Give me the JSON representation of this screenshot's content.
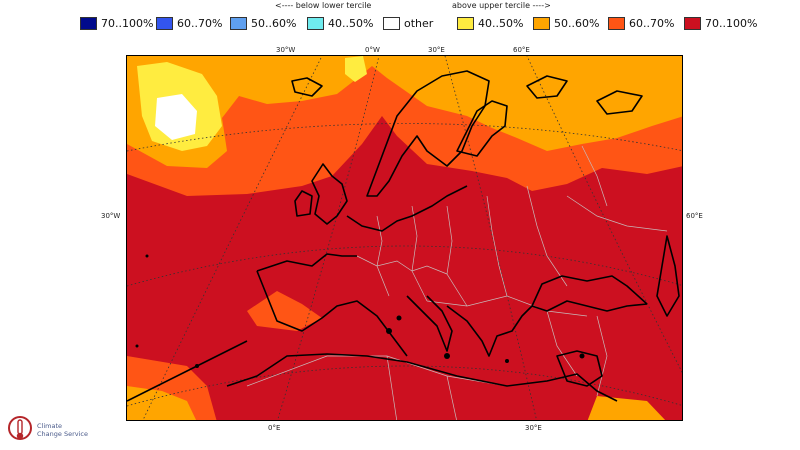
{
  "legend": {
    "below_caption": "<---- below lower tercile",
    "above_caption": "above upper tercile ---->",
    "items": [
      {
        "label": "70..100%",
        "color": "#000a8c"
      },
      {
        "label": "60..70%",
        "color": "#3355ee"
      },
      {
        "label": "50..60%",
        "color": "#5fa0f0"
      },
      {
        "label": "40..50%",
        "color": "#6fecef"
      },
      {
        "label": "other",
        "color": "#ffffff"
      },
      {
        "label": "40..50%",
        "color": "#ffec40"
      },
      {
        "label": "50..60%",
        "color": "#ffa500"
      },
      {
        "label": "60..70%",
        "color": "#ff5515"
      },
      {
        "label": "70..100%",
        "color": "#cc1020"
      }
    ]
  },
  "graticule": {
    "top": [
      "30°W",
      "0°W",
      "30°E",
      "60°E"
    ],
    "left": "30°W",
    "right": "60°E",
    "bottom": [
      "0°E",
      "30°E"
    ]
  },
  "logo": {
    "line1": "Climate",
    "line2": "Change Service",
    "color": "#b5262a",
    "icon": "thermometer-logo-icon"
  },
  "map_colors": {
    "land_outline": "#000000",
    "borders": "#c9b9b9",
    "graticule": "#333333"
  }
}
